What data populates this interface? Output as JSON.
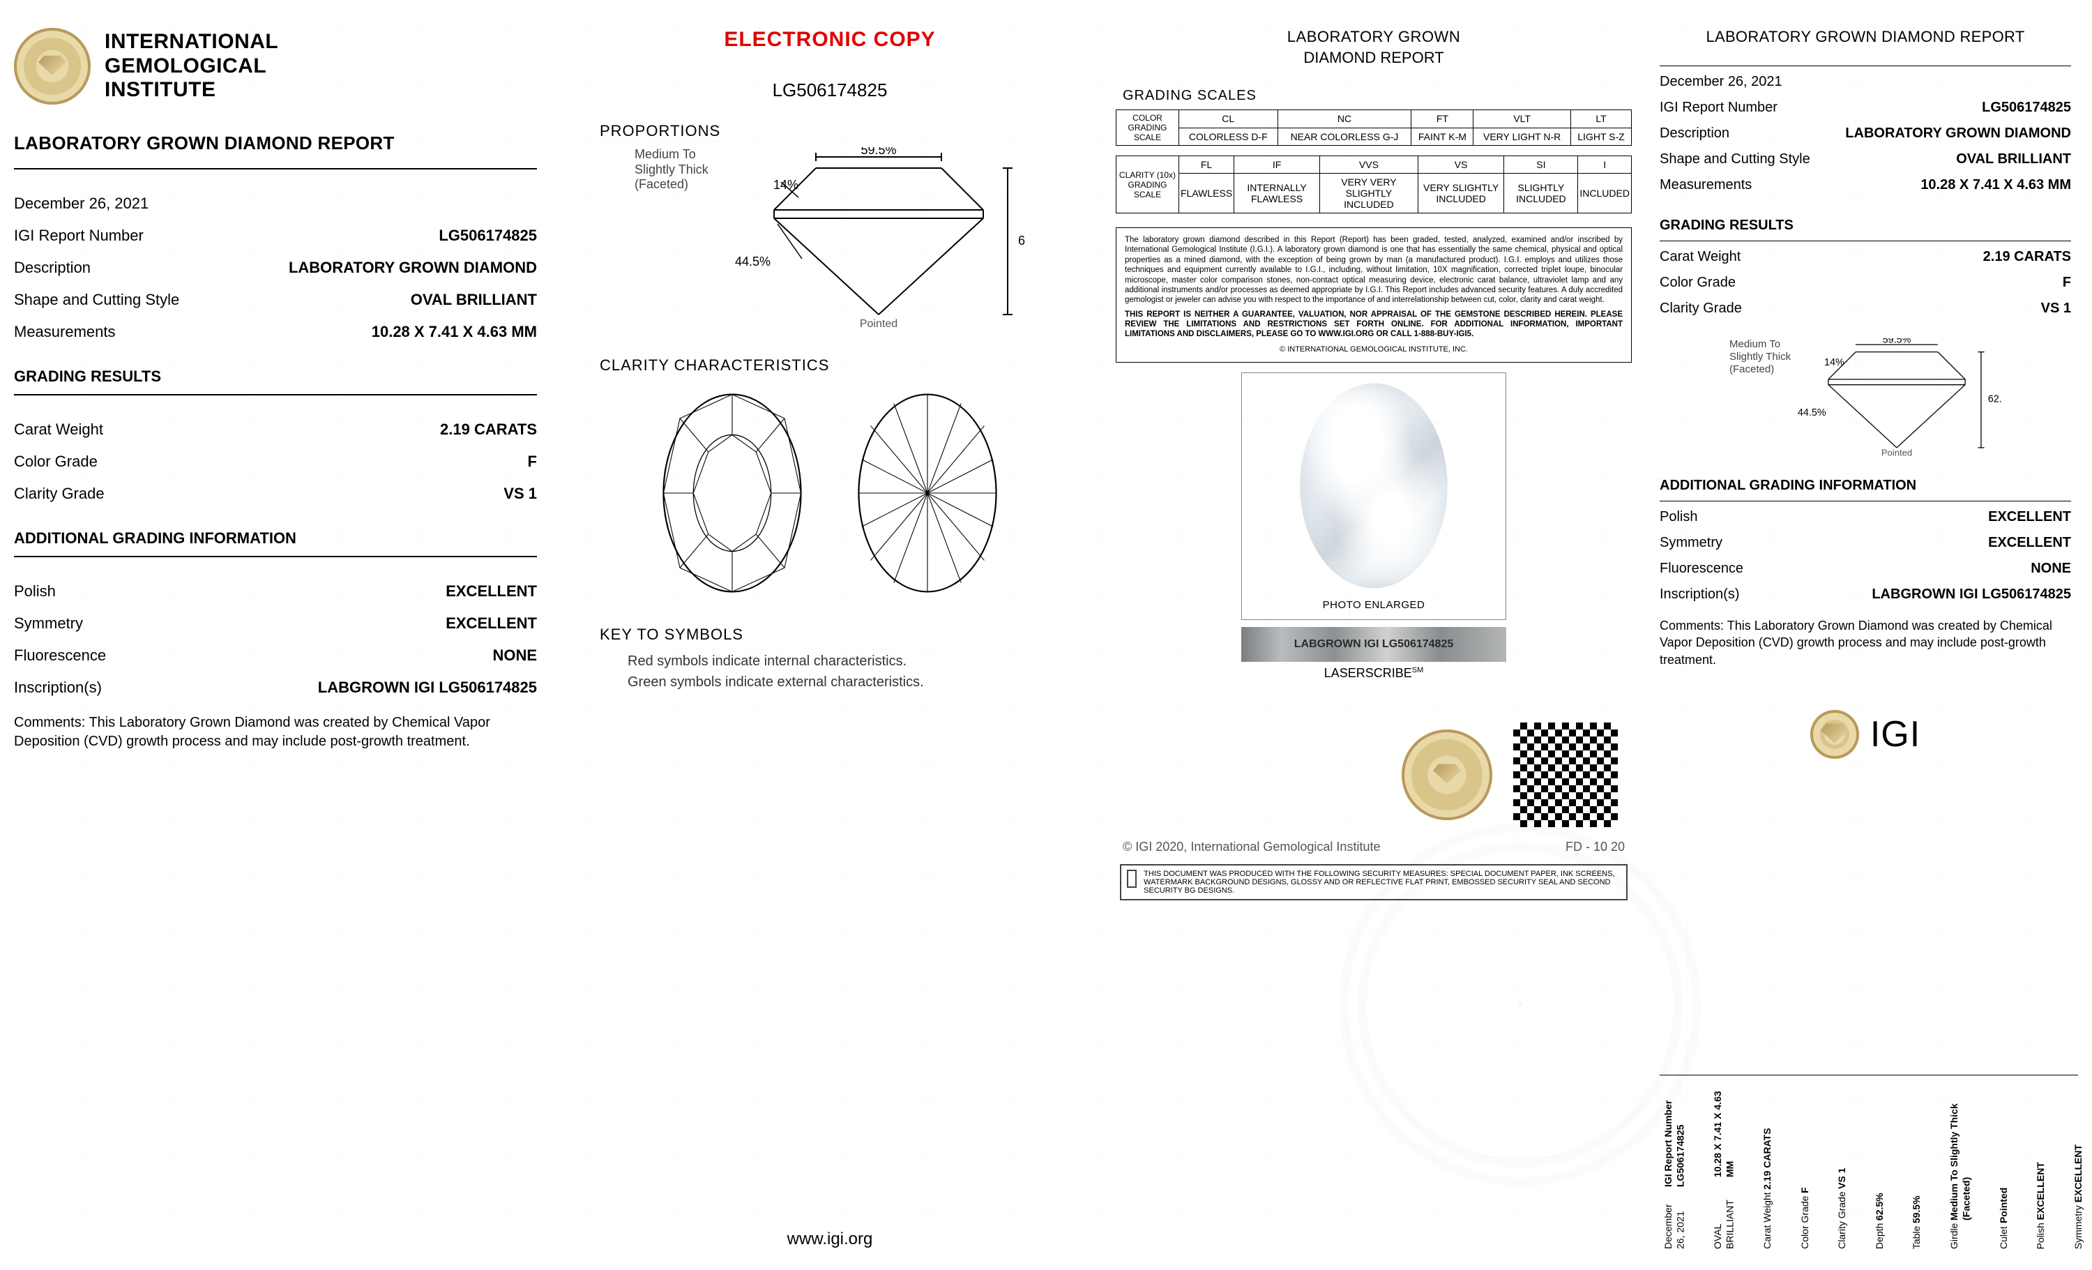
{
  "org": {
    "name_line1": "INTERNATIONAL",
    "name_line2": "GEMOLOGICAL",
    "name_line3": "INSTITUTE",
    "website": "www.igi.org",
    "copyright": "© IGI 2020, International Gemological Institute",
    "form_code": "FD - 10 20"
  },
  "stamp": {
    "electronic_copy": "ELECTRONIC COPY"
  },
  "report": {
    "title": "LABORATORY GROWN DIAMOND REPORT",
    "title_short_1": "LABORATORY GROWN",
    "title_short_2": "DIAMOND REPORT",
    "date": "December 26, 2021",
    "number_label": "IGI Report Number",
    "number": "LG506174825",
    "description_label": "Description",
    "description": "LABORATORY GROWN DIAMOND",
    "shape_label": "Shape and Cutting Style",
    "shape": "OVAL BRILLIANT",
    "measurements_label": "Measurements",
    "measurements": "10.28 X 7.41 X 4.63 MM"
  },
  "grading": {
    "section": "GRADING RESULTS",
    "carat_label": "Carat Weight",
    "carat": "2.19 CARATS",
    "color_label": "Color Grade",
    "color": "F",
    "clarity_label": "Clarity Grade",
    "clarity": "VS 1"
  },
  "additional": {
    "section": "ADDITIONAL GRADING INFORMATION",
    "polish_label": "Polish",
    "polish": "EXCELLENT",
    "symmetry_label": "Symmetry",
    "symmetry": "EXCELLENT",
    "fluorescence_label": "Fluorescence",
    "fluorescence": "NONE",
    "inscription_label": "Inscription(s)",
    "inscription": "LABGROWN IGI LG506174825"
  },
  "comments": {
    "text": "Comments: This Laboratory Grown Diamond was created by Chemical Vapor Deposition (CVD) growth process and may include post-growth treatment."
  },
  "proportions": {
    "heading": "PROPORTIONS",
    "table_pct": "59.5%",
    "depth_pct": "62.5%",
    "crown_pct": "14%",
    "pavilion_pct": "44.5%",
    "girdle_label": "Medium To Slightly Thick (Faceted)",
    "culet_label": "Pointed",
    "diagram": {
      "stroke": "#000000",
      "fill": "none",
      "label_color": "#555555",
      "label_fontsize": 18
    }
  },
  "clarity_char": {
    "heading": "CLARITY CHARACTERISTICS",
    "oval_stroke": "#000000",
    "oval_fill": "none"
  },
  "key": {
    "heading": "KEY TO SYMBOLS",
    "line1": "Red symbols indicate internal characteristics.",
    "line2": "Green symbols indicate external characteristics."
  },
  "scales": {
    "heading": "GRADING SCALES",
    "color": {
      "row_label": "COLOR GRADING SCALE",
      "codes": [
        "CL",
        "NC",
        "FT",
        "VLT",
        "LT"
      ],
      "groups": [
        "COLORLESS D-F",
        "NEAR COLORLESS G-J",
        "FAINT K-M",
        "VERY LIGHT N-R",
        "LIGHT S-Z"
      ]
    },
    "clarity": {
      "row_label": "CLARITY (10x) GRADING SCALE",
      "codes": [
        "FL",
        "IF",
        "VVS",
        "VS",
        "SI",
        "I"
      ],
      "groups": [
        "FLAWLESS",
        "INTERNALLY FLAWLESS",
        "VERY VERY SLIGHTLY INCLUDED",
        "VERY SLIGHTLY INCLUDED",
        "SLIGHTLY INCLUDED",
        "INCLUDED"
      ]
    },
    "table_style": {
      "border_color": "#000000",
      "font_size": 14,
      "header_font_size": 12
    }
  },
  "disclaimer": {
    "body": "The laboratory grown diamond described in this Report (Report) has been graded, tested, analyzed, examined and/or inscribed by International Gemological Institute (I.G.I.). A laboratory grown diamond is one that has essentially the same chemical, physical and optical properties as a mined diamond, with the exception of being grown by man (a manufactured product). I.G.I. employs and utilizes those techniques and equipment currently available to I.G.I., including, without limitation, 10X magnification, corrected triplet loupe, binocular microscope, master color comparison stones, non-contact optical measuring device, electronic carat balance, ultraviolet lamp and any additional instruments and/or processes as deemed appropriate by I.G.I. This Report includes advanced security features. A duly accredited gemologist or jeweler can advise you with respect to the importance of and interrelationship between cut, color, clarity and carat weight.",
    "caps": "THIS REPORT IS NEITHER A GUARANTEE, VALUATION, NOR APPRAISAL OF THE GEMSTONE DESCRIBED HEREIN. PLEASE REVIEW THE LIMITATIONS AND RESTRICTIONS SET FORTH ONLINE. FOR ADDITIONAL INFORMATION, IMPORTANT LIMITATIONS AND DISCLAIMERS, PLEASE GO TO WWW.IGI.ORG OR CALL 1-888-BUY-IGI5.",
    "copy": "© INTERNATIONAL GEMOLOGICAL INSTITUTE, INC."
  },
  "photo": {
    "caption": "PHOTO ENLARGED",
    "laser_text": "LABGROWN IGI LG506174825",
    "laser_label": "LASERSCRIBE",
    "laser_sm": "SM"
  },
  "security_note": {
    "text": "THIS DOCUMENT WAS PRODUCED WITH THE FOLLOWING SECURITY MEASURES: SPECIAL DOCUMENT PAPER, INK SCREENS, WATERMARK BACKGROUND DESIGNS, GLOSSY AND OR REFLECTIVE FLAT PRINT, EMBOSSED SECURITY SEAL AND SECOND SECURITY BG DESIGNS."
  },
  "page4_logo": {
    "text": "IGI"
  },
  "spec_strip": {
    "cols": [
      [
        "December 26, 2021",
        "IGI Report Number LG506174825"
      ],
      [
        "OVAL BRILLIANT",
        "10.28 X 7.41 X 4.63 MM"
      ],
      [
        "Carat Weight",
        "2.19 CARATS"
      ],
      [
        "Color Grade",
        "F"
      ],
      [
        "Clarity Grade",
        "VS 1"
      ],
      [
        "Depth",
        "62.5%"
      ],
      [
        "Table",
        "59.5%"
      ],
      [
        "Girdle",
        "Medium To Slightly Thick (Faceted)"
      ],
      [
        "Culet",
        "Pointed"
      ],
      [
        "Polish",
        "EXCELLENT"
      ],
      [
        "Symmetry",
        "EXCELLENT"
      ],
      [
        "Fluorescence",
        "NONE"
      ],
      [
        "Inscription(s)",
        "LABGROWN IGI LG506174825"
      ],
      [
        "This Laboratory Grown Diamond was created by Chemical Vapor Deposition (CVD) growth process and may include post-growth treatment."
      ]
    ]
  },
  "colors": {
    "text": "#000000",
    "ecopy": "#e00000",
    "muted": "#555555",
    "border": "#000000",
    "bg": "#ffffff"
  }
}
